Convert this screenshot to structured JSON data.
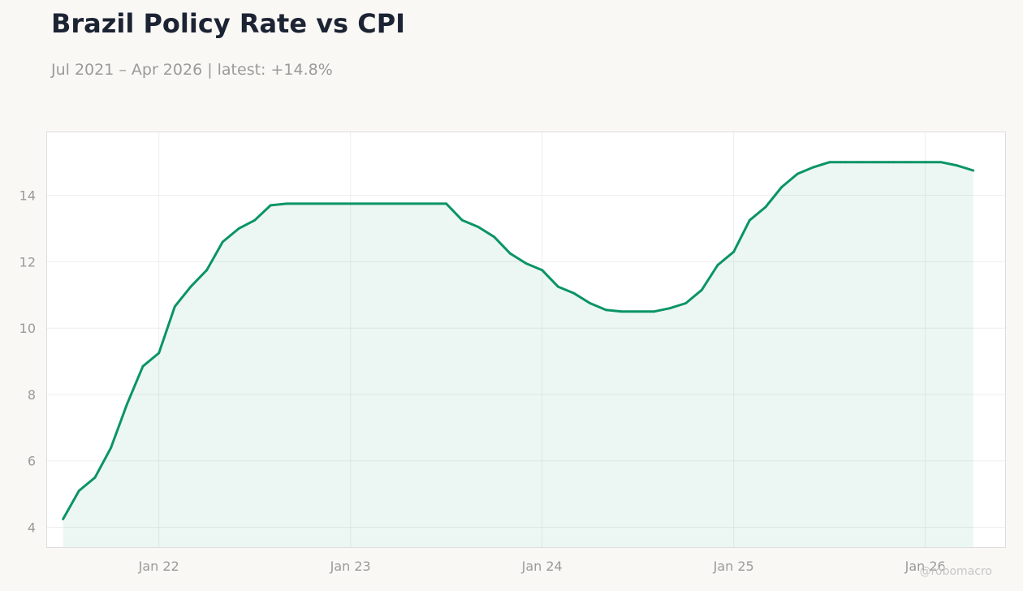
{
  "header": {
    "title": "Brazil Policy Rate vs CPI",
    "subtitle": "Jul 2021 – Apr 2026 | latest: +14.8%"
  },
  "watermark": "@robomacro",
  "colors": {
    "line": "#0a9466",
    "fill": "#0a9466",
    "background": "#f9f8f5",
    "plot_background": "#ffffff",
    "grid": "#eeeeee",
    "text": "#9a9a9a"
  },
  "chart_data": {
    "type": "area",
    "title": "Brazil Policy Rate vs CPI",
    "xlabel": "",
    "ylabel": "",
    "grid": true,
    "x_ticks": [
      "Jan 22",
      "Jan 23",
      "Jan 24",
      "Jan 25",
      "Jan 26"
    ],
    "y_ticks": [
      4,
      6,
      8,
      10,
      12,
      14
    ],
    "xlim": [
      "2021-06",
      "2026-06"
    ],
    "ylim": [
      3.4,
      15.9
    ],
    "series": [
      {
        "points": [
          [
            "2021-07",
            4.25
          ],
          [
            "2021-08",
            5.1
          ],
          [
            "2021-09",
            5.5
          ],
          [
            "2021-10",
            6.4
          ],
          [
            "2021-11",
            7.7
          ],
          [
            "2021-12",
            8.85
          ],
          [
            "2022-01",
            9.25
          ],
          [
            "2022-02",
            10.65
          ],
          [
            "2022-03",
            11.25
          ],
          [
            "2022-04",
            11.75
          ],
          [
            "2022-05",
            12.6
          ],
          [
            "2022-06",
            13.0
          ],
          [
            "2022-07",
            13.25
          ],
          [
            "2022-08",
            13.7
          ],
          [
            "2022-09",
            13.75
          ],
          [
            "2022-10",
            13.75
          ],
          [
            "2022-11",
            13.75
          ],
          [
            "2022-12",
            13.75
          ],
          [
            "2023-01",
            13.75
          ],
          [
            "2023-02",
            13.75
          ],
          [
            "2023-03",
            13.75
          ],
          [
            "2023-04",
            13.75
          ],
          [
            "2023-05",
            13.75
          ],
          [
            "2023-06",
            13.75
          ],
          [
            "2023-07",
            13.75
          ],
          [
            "2023-08",
            13.25
          ],
          [
            "2023-09",
            13.05
          ],
          [
            "2023-10",
            12.75
          ],
          [
            "2023-11",
            12.25
          ],
          [
            "2023-12",
            11.95
          ],
          [
            "2024-01",
            11.75
          ],
          [
            "2024-02",
            11.25
          ],
          [
            "2024-03",
            11.05
          ],
          [
            "2024-04",
            10.75
          ],
          [
            "2024-05",
            10.55
          ],
          [
            "2024-06",
            10.5
          ],
          [
            "2024-07",
            10.5
          ],
          [
            "2024-08",
            10.5
          ],
          [
            "2024-09",
            10.6
          ],
          [
            "2024-10",
            10.75
          ],
          [
            "2024-11",
            11.15
          ],
          [
            "2024-12",
            11.9
          ],
          [
            "2025-01",
            12.3
          ],
          [
            "2025-02",
            13.25
          ],
          [
            "2025-03",
            13.65
          ],
          [
            "2025-04",
            14.25
          ],
          [
            "2025-05",
            14.65
          ],
          [
            "2025-06",
            14.85
          ],
          [
            "2025-07",
            15.0
          ],
          [
            "2025-08",
            15.0
          ],
          [
            "2025-09",
            15.0
          ],
          [
            "2025-10",
            15.0
          ],
          [
            "2025-11",
            15.0
          ],
          [
            "2025-12",
            15.0
          ],
          [
            "2026-01",
            15.0
          ],
          [
            "2026-02",
            15.0
          ],
          [
            "2026-03",
            14.9
          ],
          [
            "2026-04",
            14.75
          ]
        ]
      }
    ]
  }
}
